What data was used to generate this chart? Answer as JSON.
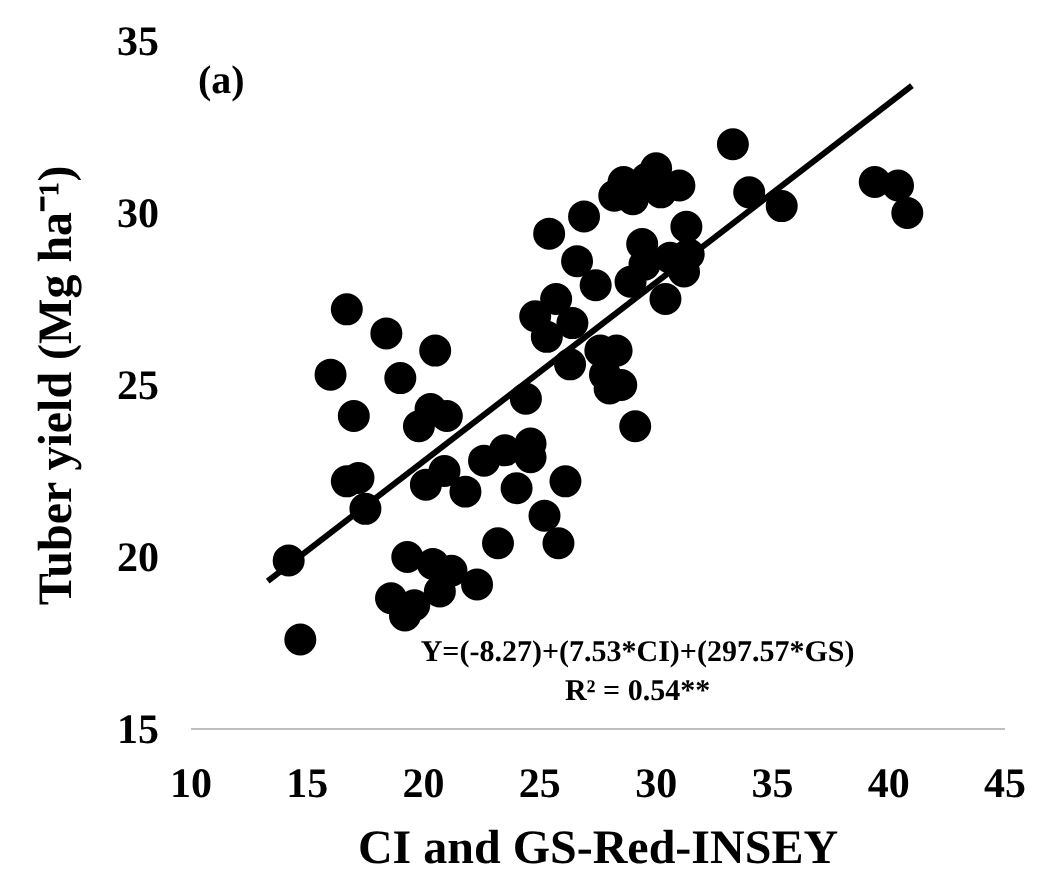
{
  "chart_data": {
    "type": "scatter",
    "xlabel": "CI and GS-Red-INSEY",
    "ylabel": "Tuber yield (Mg ha⁻¹)",
    "xlim": [
      10,
      45
    ],
    "xticks": [
      10,
      15,
      20,
      25,
      30,
      35,
      40,
      45
    ],
    "ylim": [
      15,
      35
    ],
    "yticks": [
      15,
      20,
      25,
      30,
      35
    ],
    "grid": false,
    "annotations": [
      "(a)",
      "Y=(-8.27)+(7.53*CI)+(297.57*GS)",
      "R² = 0.54**"
    ],
    "series": [
      {
        "color": "#000000",
        "x": [
          14.2,
          14.7,
          16.0,
          16.7,
          17.0,
          16.7,
          17.2,
          17.5,
          18.4,
          18.6,
          19.0,
          19.2,
          19.6,
          19.3,
          19.8,
          20.1,
          20.3,
          20.5,
          20.4,
          20.7,
          20.9,
          21.0,
          21.2,
          21.8,
          22.3,
          22.6,
          23.2,
          23.5,
          24.0,
          24.4,
          24.6,
          24.6,
          24.8,
          25.2,
          25.3,
          25.4,
          25.7,
          25.8,
          26.1,
          26.3,
          26.4,
          26.6,
          26.9,
          27.4,
          27.6,
          27.8,
          28.0,
          28.3,
          28.5,
          28.2,
          28.6,
          28.9,
          29.0,
          29.1,
          29.4,
          29.5,
          29.6,
          30.0,
          30.2,
          30.4,
          30.6,
          31.0,
          31.3,
          31.4,
          31.2,
          33.3,
          34.0,
          35.4,
          39.4,
          40.4,
          40.8
        ],
        "values": [
          19.9,
          17.6,
          25.3,
          27.2,
          24.1,
          22.2,
          22.3,
          21.4,
          26.5,
          18.8,
          25.2,
          18.3,
          18.6,
          20.0,
          23.8,
          22.1,
          24.3,
          26.0,
          19.8,
          19.0,
          22.5,
          24.1,
          19.6,
          21.9,
          19.2,
          22.8,
          20.4,
          23.1,
          22.0,
          24.6,
          23.3,
          22.9,
          27.0,
          21.2,
          26.4,
          29.4,
          27.5,
          20.4,
          22.2,
          25.6,
          26.8,
          28.6,
          29.9,
          27.9,
          26.0,
          25.3,
          24.9,
          26.0,
          25.0,
          30.5,
          30.9,
          28.0,
          30.4,
          23.8,
          29.1,
          28.5,
          31.0,
          31.3,
          30.6,
          27.5,
          28.7,
          30.8,
          29.6,
          28.8,
          28.3,
          32.0,
          30.6,
          30.2,
          30.9,
          30.8,
          30.0
        ]
      },
      {
        "type": "line",
        "color": "#000000",
        "x": [
          13.3,
          41.0
        ],
        "values": [
          19.3,
          33.7
        ]
      }
    ]
  }
}
